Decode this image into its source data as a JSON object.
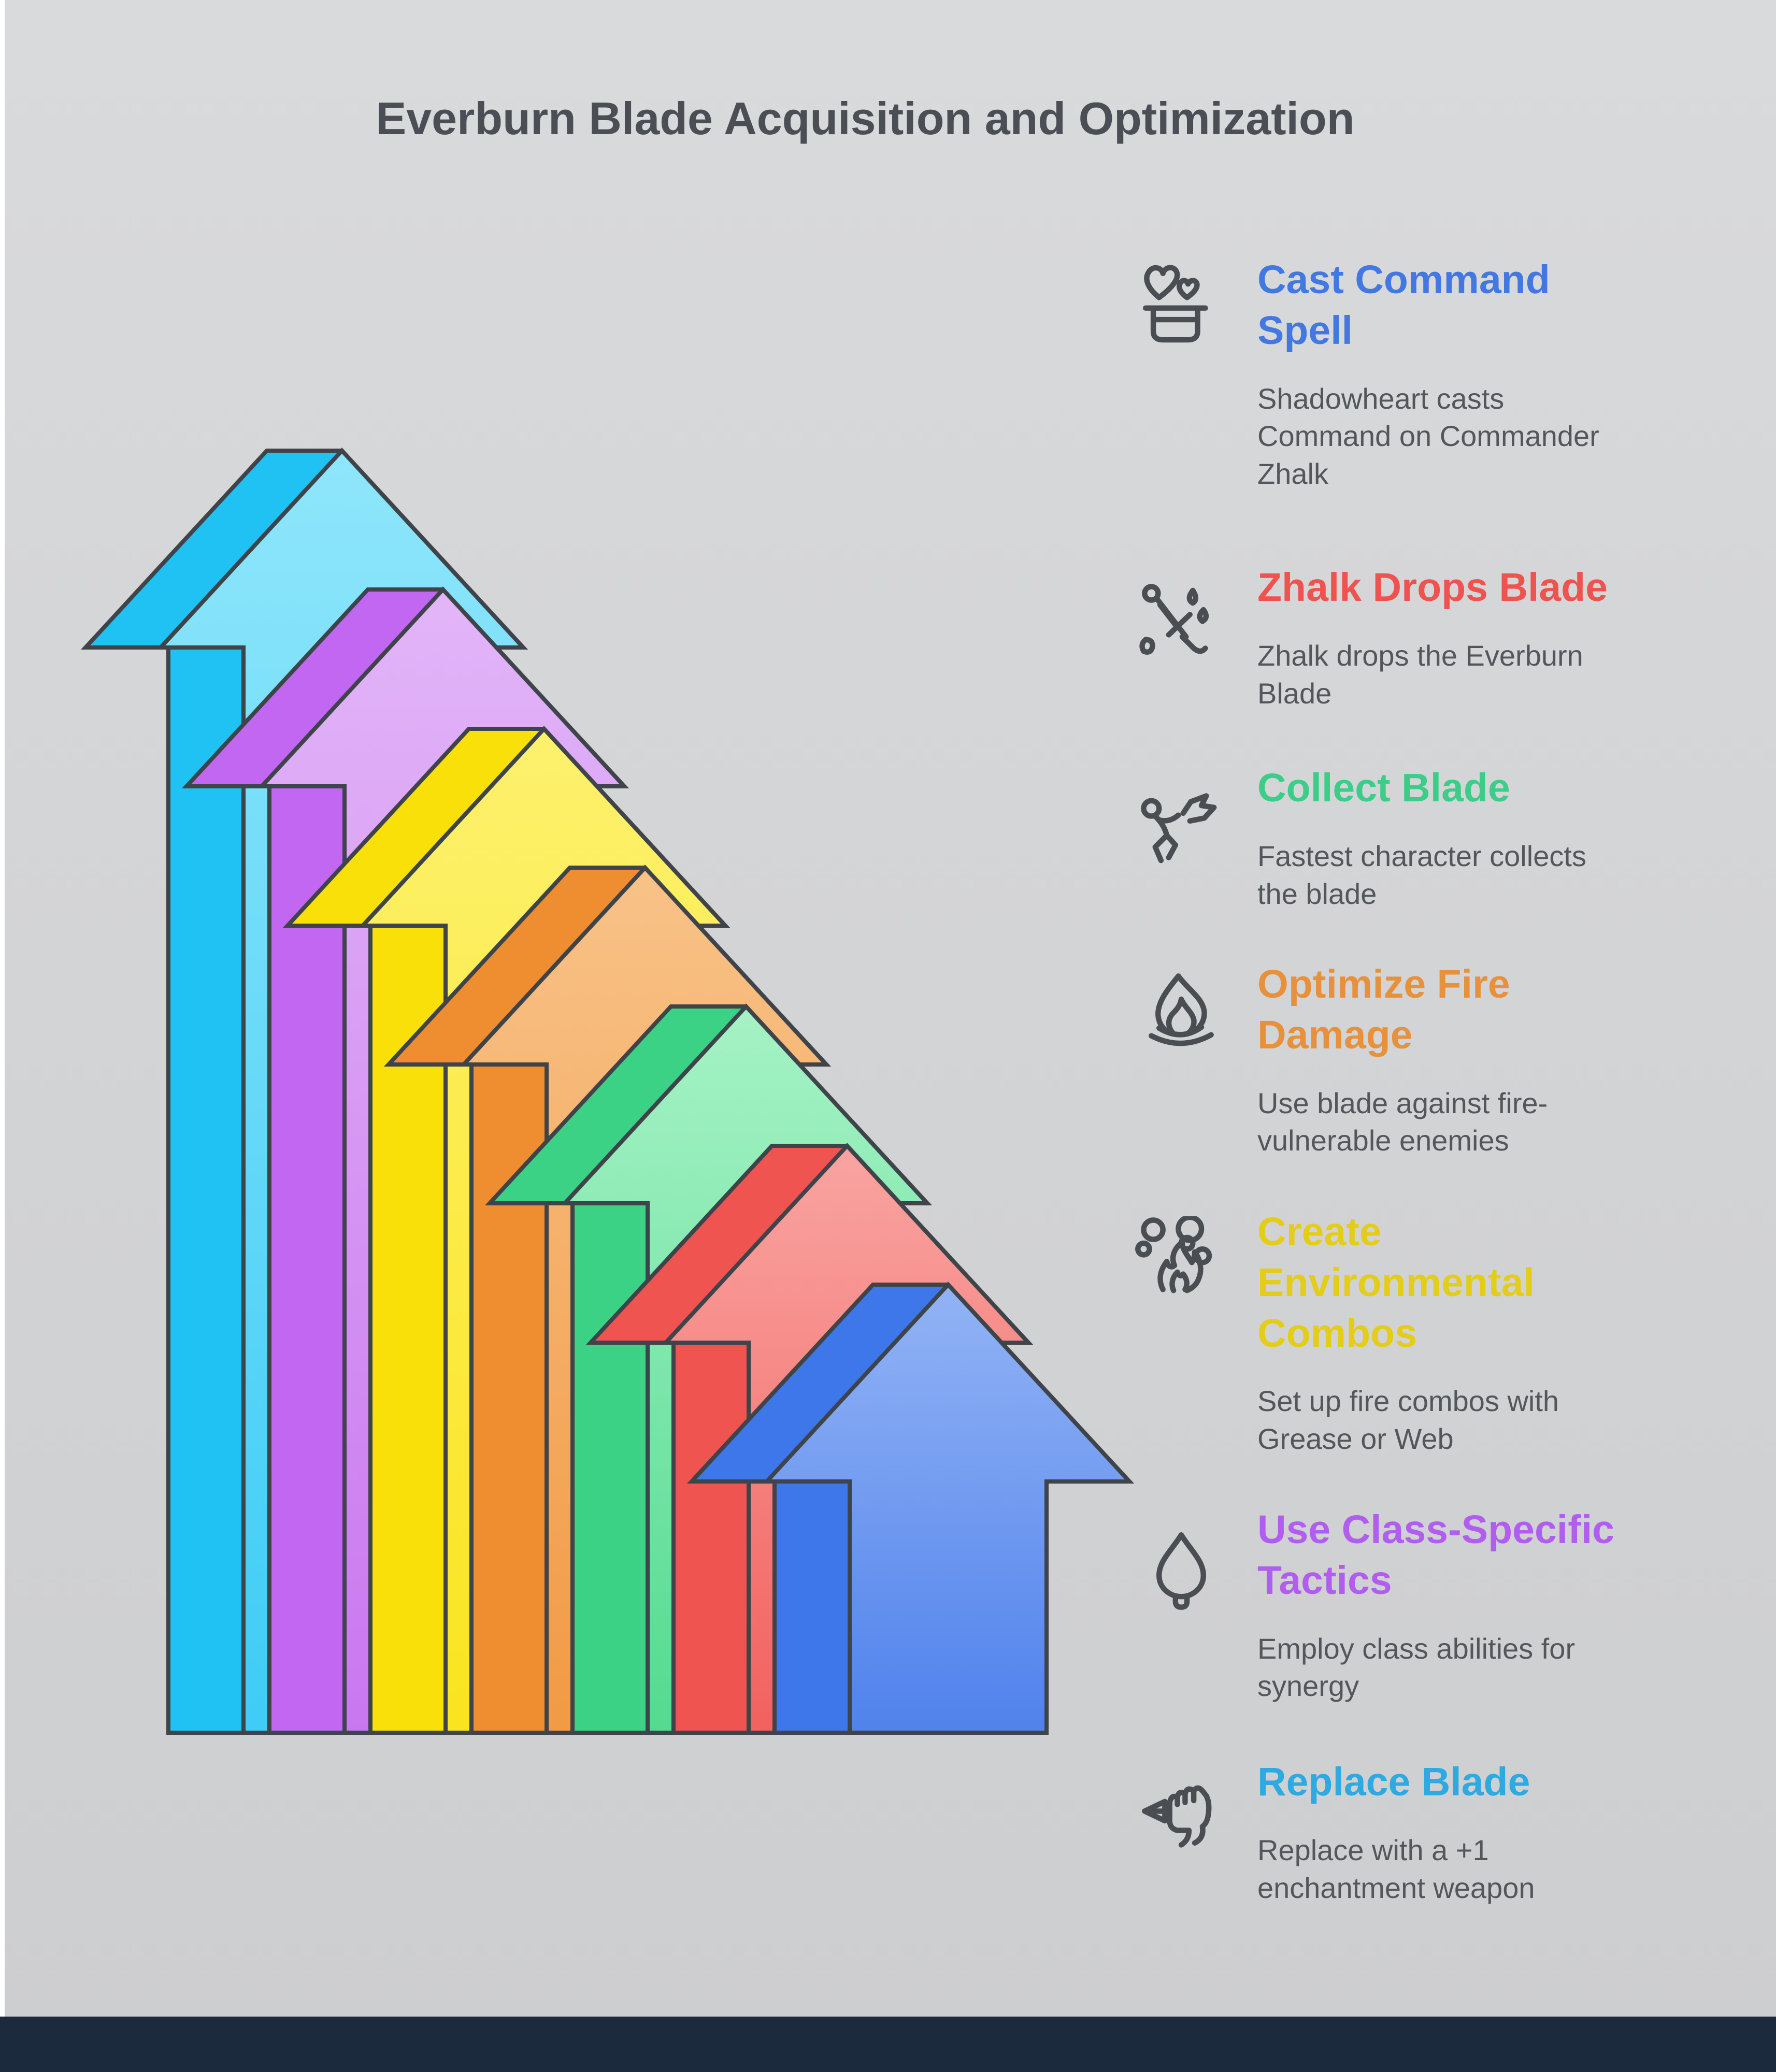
{
  "title": "Everburn Blade Acquisition and Optimization",
  "theme": {
    "background": "#d4d5d7",
    "title_color": "#4b4f55",
    "description_color": "#53575c",
    "icon_stroke_color": "#4a4e53",
    "arrow_outline_color": "#3e444a",
    "footer_color": "#1c2a3e",
    "left_edge_color": "#ffffff"
  },
  "steps": [
    {
      "title": "Cast Command\nSpell",
      "color": "#4478e1",
      "description": "Shadowheart casts\nCommand on Commander\nZhalk",
      "icon": "magic-hat-hearts"
    },
    {
      "title": "Zhalk Drops Blade",
      "color": "#ef5350",
      "description": "Zhalk drops the Everburn\nBlade",
      "icon": "sword-drops"
    },
    {
      "title": "Collect Blade",
      "color": "#3ecd88",
      "description": "Fastest character collects\nthe blade",
      "icon": "running-person"
    },
    {
      "title": "Optimize Fire\nDamage",
      "color": "#e8913d",
      "description": "Use blade against fire-\nvulnerable enemies",
      "icon": "flame"
    },
    {
      "title": "Create\nEnvironmental\nCombos",
      "color": "#e4cd18",
      "description": "Set up fire combos with\nGrease or Web",
      "icon": "fire-bubbles"
    },
    {
      "title": "Use Class-Specific\nTactics",
      "color": "#b15ef0",
      "description": "Employ class abilities for\nsynergy",
      "icon": "spade"
    },
    {
      "title": "Replace Blade",
      "color": "#2caae1",
      "description": "Replace with a +1\nenchantment weapon",
      "icon": "fist-arrow"
    }
  ],
  "arrows": {
    "description": "Seven 3D upward arrows, tallest at left, descending stepwise to the right, all sharing one baseline",
    "colors": [
      {
        "name": "cyan",
        "back": "#20c2f3",
        "front_top": "#8ee6fb",
        "front_bottom": "#3fccf6"
      },
      {
        "name": "purple",
        "back": "#c167f1",
        "front_top": "#e2b5f8",
        "front_bottom": "#ca77ef"
      },
      {
        "name": "yellow",
        "back": "#f8e008",
        "front_top": "#fdf16d",
        "front_bottom": "#fae41f"
      },
      {
        "name": "orange",
        "back": "#ef8e31",
        "front_top": "#f8c287",
        "front_bottom": "#f29a45"
      },
      {
        "name": "green",
        "back": "#3cd286",
        "front_top": "#a6f2c5",
        "front_bottom": "#53db90"
      },
      {
        "name": "red",
        "back": "#ef5451",
        "front_top": "#f9a4a1",
        "front_bottom": "#f2615e"
      },
      {
        "name": "blue",
        "back": "#3d77e9",
        "front_top": "#92b3f5",
        "front_bottom": "#5082ec"
      }
    ]
  }
}
